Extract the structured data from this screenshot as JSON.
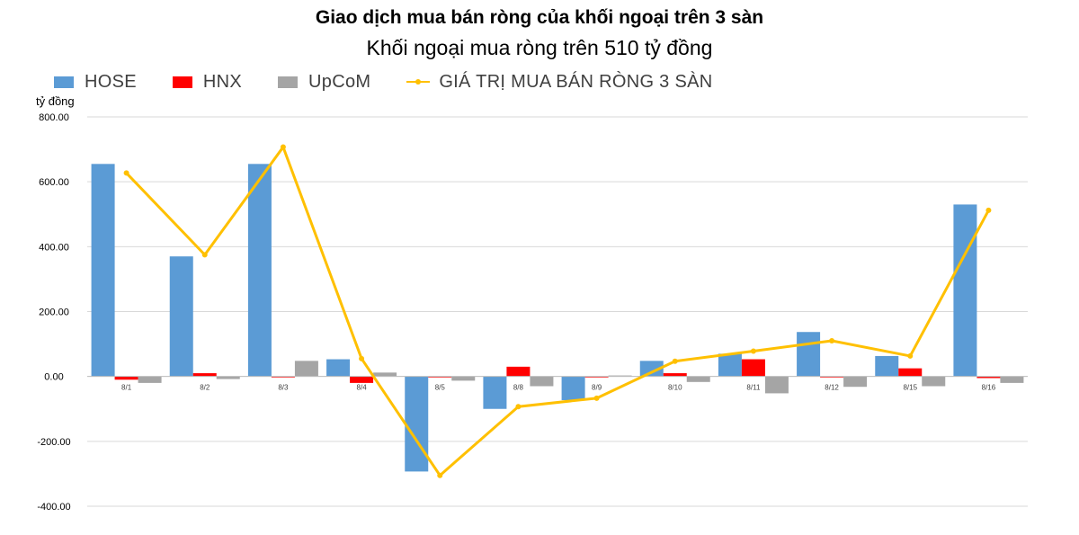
{
  "chart_data": {
    "type": "bar",
    "title": "Giao dịch mua bán ròng của khối ngoại trên 3 sàn",
    "subtitle": "Khối ngoại mua ròng trên 510 tỷ đồng",
    "ylabel": "tỷ đồng",
    "xlabel": "",
    "ylim": [
      -400,
      800
    ],
    "yticks": [
      "800.00",
      "600.00",
      "400.00",
      "200.00",
      "0.00",
      "-200.00",
      "-400.00"
    ],
    "ytick_values": [
      800,
      600,
      400,
      200,
      0,
      -200,
      -400
    ],
    "grid": true,
    "legend_position": "top-left",
    "categories": [
      "8/1",
      "8/2",
      "8/3",
      "8/4",
      "8/5",
      "8/8",
      "8/9",
      "8/10",
      "8/11",
      "8/12",
      "8/15",
      "8/16"
    ],
    "series": [
      {
        "name": "HOSE",
        "type": "bar",
        "color": "#5B9BD5",
        "values": [
          655,
          370,
          655,
          53,
          -293,
          -100,
          -73,
          48,
          70,
          137,
          63,
          530
        ]
      },
      {
        "name": "HNX",
        "type": "bar",
        "color": "#FF0000",
        "values": [
          -10,
          10,
          -3,
          -20,
          -3,
          30,
          -3,
          10,
          53,
          -3,
          25,
          -5
        ]
      },
      {
        "name": "UpCoM",
        "type": "bar",
        "color": "#A5A5A5",
        "values": [
          -20,
          -8,
          48,
          12,
          -13,
          -30,
          3,
          -17,
          -52,
          -32,
          -30,
          -20
        ]
      },
      {
        "name": "GIÁ TRỊ MUA BÁN RÒNG 3 SÀN",
        "type": "line",
        "color": "#FFC000",
        "values": [
          627,
          375,
          707,
          55,
          -305,
          -93,
          -67,
          47,
          78,
          110,
          63,
          512
        ]
      }
    ]
  }
}
